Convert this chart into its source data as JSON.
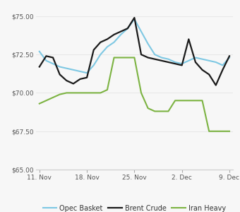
{
  "x_labels": [
    "11. Nov",
    "18. Nov",
    "25. Nov",
    "2. Dec",
    "9. Dec"
  ],
  "x_positions": [
    0,
    7,
    14,
    21,
    28
  ],
  "opec_basket": {
    "x": [
      0,
      1,
      2,
      3,
      4,
      5,
      6,
      7,
      8,
      9,
      10,
      11,
      12,
      13,
      14,
      15,
      16,
      17,
      18,
      19,
      20,
      21,
      22,
      23,
      24,
      25,
      26,
      27,
      28
    ],
    "y": [
      72.7,
      72.1,
      71.9,
      71.7,
      71.6,
      71.5,
      71.4,
      71.3,
      71.8,
      72.5,
      73.0,
      73.3,
      73.8,
      74.2,
      74.8,
      74.0,
      73.2,
      72.5,
      72.3,
      72.2,
      72.0,
      71.9,
      72.1,
      72.3,
      72.2,
      72.1,
      72.0,
      71.8,
      72.3
    ],
    "color": "#7ec8e3",
    "label": "Opec Basket",
    "lw": 1.5
  },
  "brent_crude": {
    "x": [
      0,
      1,
      2,
      3,
      4,
      5,
      6,
      7,
      8,
      9,
      10,
      11,
      12,
      13,
      14,
      15,
      16,
      17,
      18,
      19,
      20,
      21,
      22,
      23,
      24,
      25,
      26,
      27,
      28
    ],
    "y": [
      71.7,
      72.4,
      72.3,
      71.2,
      70.8,
      70.6,
      70.9,
      71.0,
      72.8,
      73.3,
      73.5,
      73.8,
      74.0,
      74.2,
      74.9,
      72.5,
      72.3,
      72.2,
      72.1,
      72.0,
      71.9,
      71.8,
      73.5,
      72.0,
      71.5,
      71.2,
      70.5,
      71.5,
      72.4
    ],
    "color": "#1a1a1a",
    "label": "Brent Crude",
    "lw": 1.6
  },
  "iran_heavy": {
    "x": [
      0,
      1,
      2,
      3,
      4,
      5,
      6,
      7,
      8,
      9,
      10,
      11,
      12,
      13,
      14,
      15,
      16,
      17,
      18,
      19,
      20,
      21,
      22,
      23,
      24,
      25,
      26,
      27,
      28
    ],
    "y": [
      69.3,
      69.5,
      69.7,
      69.9,
      70.0,
      70.0,
      70.0,
      70.0,
      70.0,
      70.0,
      70.2,
      72.3,
      72.3,
      72.3,
      72.3,
      70.0,
      69.0,
      68.8,
      68.8,
      68.8,
      69.5,
      69.5,
      69.5,
      69.5,
      69.5,
      67.5,
      67.5,
      67.5,
      67.5
    ],
    "color": "#7cb342",
    "label": "Iran Heavy",
    "lw": 1.5
  },
  "ylim": [
    65.0,
    75.5
  ],
  "yticks": [
    65.0,
    67.5,
    70.0,
    72.5,
    75.0
  ],
  "ytick_labels": [
    "$65.00",
    "$67.50",
    "$70.00",
    "$72.50",
    "$75.00"
  ],
  "background_color": "#f7f7f7",
  "grid_color": "#e8e8e8"
}
